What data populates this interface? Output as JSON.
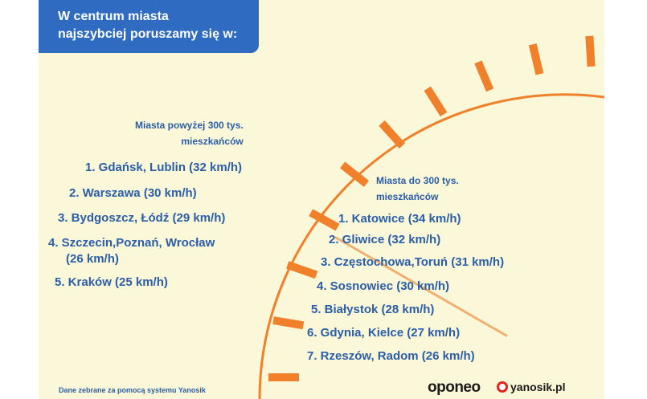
{
  "header": {
    "title_line1": "W centrum miasta",
    "title_line2": "najszybciej poruszamy się w:"
  },
  "large_cities": {
    "heading_line1": "Miasta powyżej 300 tys.",
    "heading_line2": "mieszkańców",
    "items": [
      "1. Gdańsk, Lublin (32 km/h)",
      "2. Warszawa (30 km/h)",
      "3. Bydgoszcz, Łódź (29 km/h)",
      "4. Szczecin,Poznań, Wrocław",
      "5. Kraków (25 km/h)"
    ],
    "item4_line2": "(26 km/h)"
  },
  "small_cities": {
    "heading_line1": "Miasta do 300 tys.",
    "heading_line2": "mieszkańców",
    "items": [
      "1. Katowice (34 km/h)",
      "2. Gliwice (32 km/h)",
      "3. Częstochowa,Toruń (31 km/h)",
      "4. Sosnowiec (30 km/h)",
      "5. Białystok (28 km/h)",
      "6. Gdynia, Kielce (27 km/h)",
      "7. Rzeszów, Radom (26 km/h)"
    ]
  },
  "footer": {
    "source": "Dane zebrane za pomocą systemu Yanosik",
    "logo_oponeo": "oponeo",
    "logo_yanosik": "yanosik.pl"
  },
  "colors": {
    "background": "#fbf7d9",
    "accent_orange": "#f0802a",
    "title_blue": "#2f6bc0",
    "text_blue": "#2a5ea8"
  }
}
